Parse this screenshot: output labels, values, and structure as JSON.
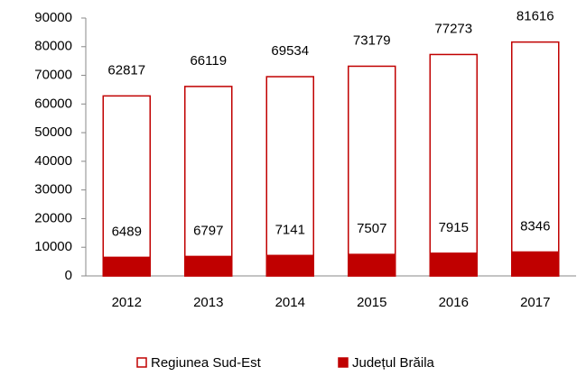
{
  "chart_data": {
    "type": "bar",
    "overlap": true,
    "categories": [
      "2012",
      "2013",
      "2014",
      "2015",
      "2016",
      "2017"
    ],
    "series": [
      {
        "name": "Regiunea Sud-Est",
        "color": "#c00000",
        "fill": "#ffffff",
        "values": [
          62817,
          66119,
          69534,
          73179,
          77273,
          81616
        ]
      },
      {
        "name": "Județul Brăila",
        "color": "#c00000",
        "fill": "#c00000",
        "values": [
          6489,
          6797,
          7141,
          7507,
          7915,
          8346
        ]
      }
    ],
    "ylim": [
      0,
      90000
    ],
    "yticks": [
      0,
      10000,
      20000,
      30000,
      40000,
      50000,
      60000,
      70000,
      80000,
      90000
    ],
    "grid": false,
    "legend": "bottom"
  }
}
